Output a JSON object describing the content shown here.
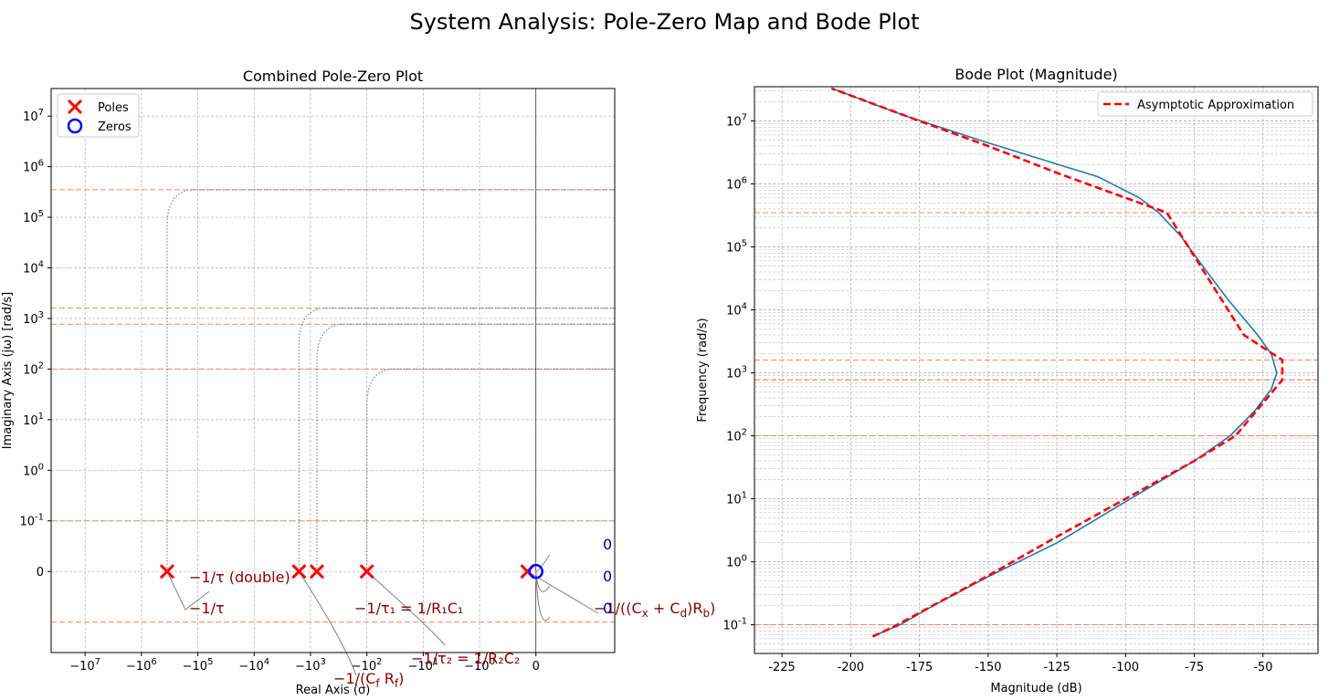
{
  "figure_title": "System Analysis: Pole-Zero Map and Bode Plot",
  "colors": {
    "pole": "#ff0000",
    "zero": "#0000ff",
    "bode": "#1f77b4",
    "asymptote": "#ff0000",
    "guide": "#fa8072",
    "annotation": "#8b0000",
    "zero_label": "#00008b",
    "locus": "#808080"
  },
  "chart_data": [
    {
      "type": "scatter",
      "title": "Combined Pole-Zero Plot",
      "xlabel": "Real Axis (σ)",
      "ylabel": "Imaginary Axis (jω) [rad/s]",
      "x_scale": "symlog",
      "y_scale": "symlog",
      "xlim": [
        -40000000,
        2.5
      ],
      "ylim": [
        -0.4,
        35000000
      ],
      "x_tick_labels": [
        "−10^7",
        "−10^6",
        "−10^5",
        "−10^4",
        "−10^3",
        "−10^2",
        "−10^1",
        "−10^0",
        "0"
      ],
      "y_tick_labels": [
        "0",
        "10^-1",
        "10^0",
        "10^1",
        "10^2",
        "10^3",
        "10^4",
        "10^5",
        "10^6",
        "10^7"
      ],
      "grid": true,
      "legend_position": "top-left",
      "series": [
        {
          "name": "Poles",
          "marker": "x",
          "points": [
            [
              -350000,
              0
            ],
            [
              -1600,
              0
            ],
            [
              -770,
              0
            ],
            [
              -100,
              0
            ],
            [
              -0.15,
              0
            ]
          ]
        },
        {
          "name": "Zeros",
          "marker": "o",
          "points": [
            [
              0,
              0
            ]
          ]
        }
      ],
      "guide_lines_y": [
        350000,
        1600,
        770,
        100,
        0.1,
        -0.1
      ],
      "annotations": [
        {
          "text": "−1/τ (double)",
          "x": -350000,
          "y": 0
        },
        {
          "text": "−1/τ",
          "x": -350000,
          "y": 0
        },
        {
          "text": "−1/τ₁ = 1/R₁C₁",
          "x": -770,
          "y": 0
        },
        {
          "text": "−1/(C_f R_f)",
          "x": -1600,
          "y": 0
        },
        {
          "text": "−1/τ₂ = 1/R₂C₂",
          "x": -100,
          "y": 0
        },
        {
          "text": "−1/((C_x + C_d)R_b)",
          "x": -0.15,
          "y": 0
        },
        {
          "text": "0",
          "x": 0,
          "y": 0
        },
        {
          "text": "0",
          "x": 0,
          "y": 0
        },
        {
          "text": "0",
          "x": 0,
          "y": 0
        }
      ]
    },
    {
      "type": "line",
      "title": "Bode Plot (Magnitude)",
      "xlabel": "Magnitude (dB)",
      "ylabel": "Frequency (rad/s)",
      "y_scale": "log",
      "xlim": [
        -235,
        -30
      ],
      "ylim": [
        0.035,
        35000000
      ],
      "x_ticks": [
        -225,
        -200,
        -175,
        -150,
        -125,
        -100,
        -75,
        -50
      ],
      "y_tick_labels": [
        "10^-1",
        "10^0",
        "10^1",
        "10^2",
        "10^3",
        "10^4",
        "10^5",
        "10^6",
        "10^7"
      ],
      "grid": true,
      "legend_position": "top-right",
      "guide_lines_y": [
        350000,
        1600,
        770,
        100,
        0.1
      ],
      "series": [
        {
          "name": "",
          "style": "solid",
          "points": [
            [
              -192,
              0.065
            ],
            [
              -182,
              0.1
            ],
            [
              -170,
              0.2
            ],
            [
              -150,
              0.58
            ],
            [
              -125,
              2
            ],
            [
              -100,
              9
            ],
            [
              -75,
              40
            ],
            [
              -62,
              100
            ],
            [
              -53,
              250
            ],
            [
              -47,
              550
            ],
            [
              -45,
              1000
            ],
            [
              -47,
              2000
            ],
            [
              -52,
              4000
            ],
            [
              -63,
              15000
            ],
            [
              -72,
              50000
            ],
            [
              -80,
              150000
            ],
            [
              -88,
              350000
            ],
            [
              -95,
              600000
            ],
            [
              -110,
              1300000
            ],
            [
              -150,
              4500000
            ],
            [
              -180,
              12000000
            ],
            [
              -207,
              33000000
            ]
          ]
        },
        {
          "name": "Asymptotic Approximation",
          "style": "dashed",
          "points": [
            [
              -192,
              0.065
            ],
            [
              -185,
              0.09
            ],
            [
              -150,
              0.6
            ],
            [
              -125,
              2.5
            ],
            [
              -100,
              10
            ],
            [
              -75,
              40
            ],
            [
              -60,
              100
            ],
            [
              -43,
              770
            ],
            [
              -43,
              1600
            ],
            [
              -57,
              4000
            ],
            [
              -85,
              350000
            ],
            [
              -100,
              600000
            ],
            [
              -125,
              1500000
            ],
            [
              -150,
              4000000
            ],
            [
              -175,
              10000000
            ],
            [
              -207,
              33000000
            ]
          ]
        }
      ]
    }
  ]
}
